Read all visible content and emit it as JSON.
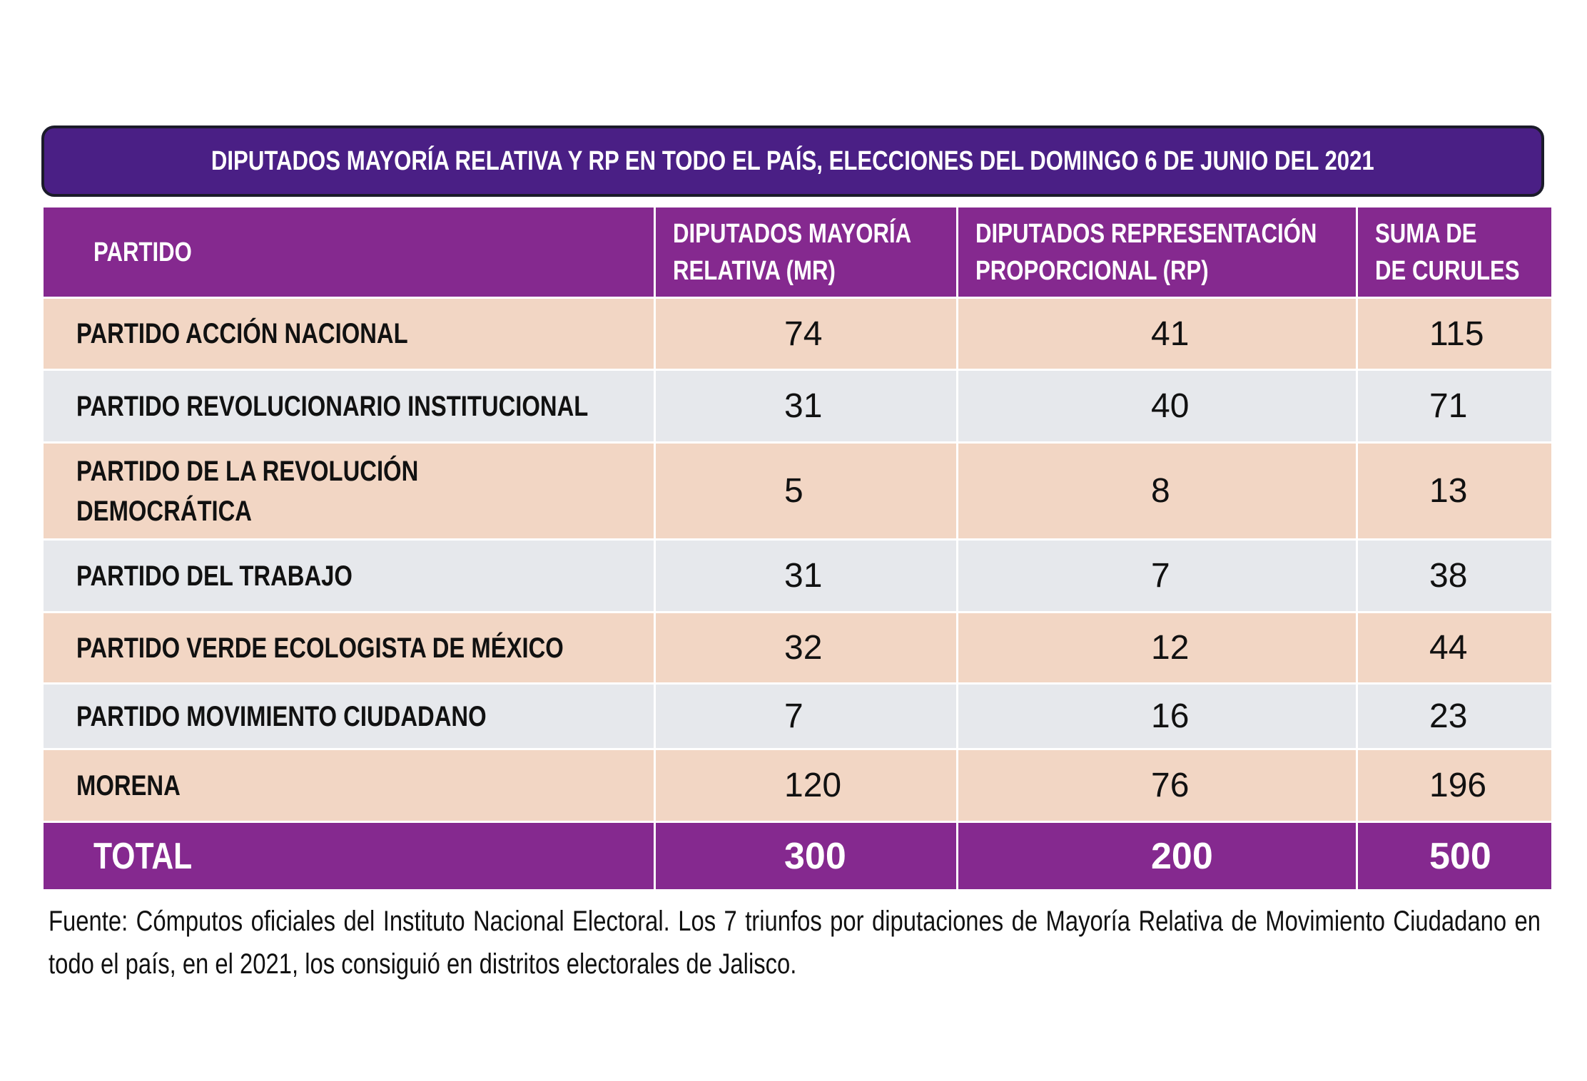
{
  "title": "DIPUTADOS MAYORÍA RELATIVA Y RP EN TODO EL PAÍS, ELECCIONES DEL DOMINGO 6 DE JUNIO DEL 2021",
  "colors": {
    "title_bg": "#4a1f85",
    "header_bg": "#85298f",
    "row_peach": "#f2d6c4",
    "row_gray": "#e6e8ec"
  },
  "chart_data": {
    "type": "table",
    "title": "DIPUTADOS MAYORÍA RELATIVA Y RP EN TODO EL PAÍS, ELECCIONES DEL DOMINGO 6 DE JUNIO DEL 2021",
    "headers": {
      "party": "PARTIDO",
      "mr_line1": "DIPUTADOS MAYORÍA",
      "mr_line2": "RELATIVA (MR)",
      "rp_line1": "DIPUTADOS REPRESENTACIÓN",
      "rp_line2": "PROPORCIONAL (RP)",
      "sum_line1": "SUMA DE",
      "sum_line2": "DE CURULES"
    },
    "rows": [
      {
        "party_line1": "PARTIDO ACCIÓN NACIONAL",
        "party_line2": "",
        "mr": "74",
        "rp": "41",
        "sum": "115"
      },
      {
        "party_line1": "PARTIDO REVOLUCIONARIO INSTITUCIONAL",
        "party_line2": "",
        "mr": "31",
        "rp": "40",
        "sum": "71"
      },
      {
        "party_line1": "PARTIDO DE LA REVOLUCIÓN",
        "party_line2": "DEMOCRÁTICA",
        "mr": "5",
        "rp": "8",
        "sum": "13"
      },
      {
        "party_line1": "PARTIDO DEL TRABAJO",
        "party_line2": "",
        "mr": "31",
        "rp": "7",
        "sum": "38"
      },
      {
        "party_line1": "PARTIDO VERDE ECOLOGISTA DE MÉXICO",
        "party_line2": "",
        "mr": "32",
        "rp": "12",
        "sum": "44"
      },
      {
        "party_line1": "PARTIDO MOVIMIENTO CIUDADANO",
        "party_line2": "",
        "mr": "7",
        "rp": "16",
        "sum": "23"
      },
      {
        "party_line1": "MORENA",
        "party_line2": "",
        "mr": "120",
        "rp": "76",
        "sum": "196"
      }
    ],
    "total": {
      "label": "TOTAL",
      "mr": "300",
      "rp": "200",
      "sum": "500"
    }
  },
  "footnote": "Fuente: Cómputos oficiales del Instituto Nacional Electoral. Los 7 triunfos por diputaciones de Mayoría Relativa de Movimiento Ciudadano en todo el país, en el 2021, los consiguió en distritos electorales de Jalisco."
}
